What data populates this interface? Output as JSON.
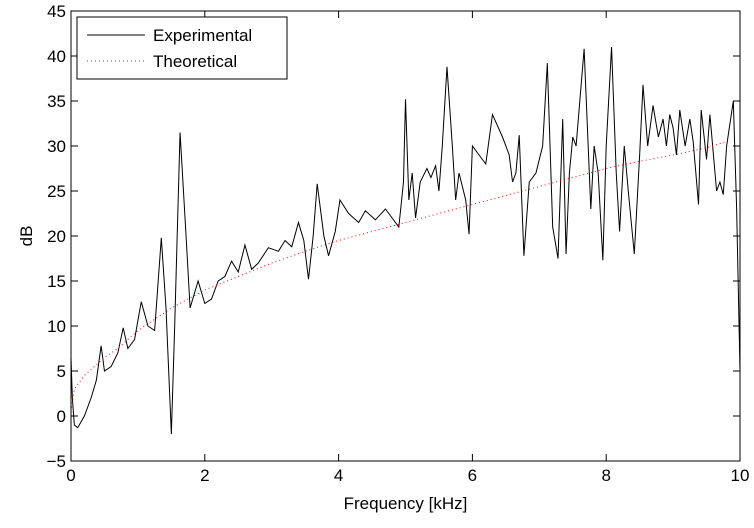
{
  "chart_data": {
    "type": "line",
    "xlabel": "Frequency [kHz]",
    "ylabel": "dB",
    "xlim": [
      0,
      10
    ],
    "ylim": [
      -5,
      45
    ],
    "xticks": [
      0,
      2,
      4,
      6,
      8,
      10
    ],
    "yticks": [
      {
        "value": -5,
        "label": "−5"
      },
      0,
      5,
      10,
      15,
      20,
      25,
      30,
      35,
      40,
      45
    ],
    "legend": "upper left",
    "series": [
      {
        "name": "Experimental",
        "color": "#000000",
        "style": "solid",
        "x": [
          0,
          0.02,
          0.05,
          0.1,
          0.2,
          0.3,
          0.38,
          0.45,
          0.5,
          0.6,
          0.7,
          0.78,
          0.85,
          0.95,
          1.05,
          1.15,
          1.25,
          1.35,
          1.42,
          1.5,
          1.55,
          1.63,
          1.72,
          1.78,
          1.9,
          2.0,
          2.1,
          2.2,
          2.3,
          2.4,
          2.5,
          2.6,
          2.7,
          2.8,
          2.95,
          3.1,
          3.2,
          3.3,
          3.4,
          3.48,
          3.55,
          3.62,
          3.68,
          3.78,
          3.85,
          3.95,
          4.02,
          4.15,
          4.3,
          4.4,
          4.55,
          4.7,
          4.8,
          4.9,
          4.97,
          5.0,
          5.05,
          5.1,
          5.15,
          5.22,
          5.32,
          5.38,
          5.45,
          5.5,
          5.55,
          5.62,
          5.7,
          5.75,
          5.8,
          5.9,
          5.95,
          6.0,
          6.1,
          6.2,
          6.3,
          6.45,
          6.55,
          6.6,
          6.65,
          6.7,
          6.77,
          6.85,
          6.95,
          7.05,
          7.12,
          7.2,
          7.28,
          7.35,
          7.4,
          7.45,
          7.5,
          7.55,
          7.67,
          7.77,
          7.82,
          7.88,
          7.95,
          8.0,
          8.08,
          8.15,
          8.2,
          8.27,
          8.33,
          8.42,
          8.5,
          8.55,
          8.62,
          8.7,
          8.78,
          8.85,
          8.9,
          8.95,
          9.0,
          9.05,
          9.1,
          9.18,
          9.25,
          9.3,
          9.38,
          9.42,
          9.5,
          9.55,
          9.65,
          9.7,
          9.75,
          9.8,
          9.9,
          9.95,
          10
        ],
        "values": [
          6.5,
          2,
          -1,
          -1.3,
          0,
          2,
          4,
          7.8,
          5,
          5.5,
          7,
          9.8,
          7.5,
          8.5,
          12.7,
          10,
          9.5,
          19.8,
          12,
          -2,
          10,
          31.5,
          20,
          12,
          15,
          12.5,
          13,
          15,
          15.5,
          17.2,
          16,
          19,
          16.3,
          17,
          18.7,
          18.3,
          19.5,
          18.8,
          21.5,
          19.5,
          15.2,
          20,
          25.8,
          20,
          17.8,
          20.5,
          24,
          22.5,
          21.5,
          22.8,
          21.8,
          23,
          22,
          21,
          26,
          35.2,
          24,
          27,
          22,
          26,
          27.5,
          26.5,
          27.8,
          25,
          30,
          38.8,
          30,
          24,
          27,
          24,
          20.2,
          30,
          29,
          28,
          33.5,
          31,
          29,
          26,
          27,
          31.2,
          17.8,
          26,
          27,
          30,
          39.2,
          21,
          17.5,
          33,
          18,
          27,
          31,
          30,
          40.8,
          23,
          30,
          27,
          17.3,
          30,
          41,
          27,
          20.5,
          30,
          25,
          18,
          29,
          36.8,
          30,
          34.5,
          31,
          33,
          30,
          33.5,
          32,
          29,
          34,
          30,
          33,
          30.5,
          23.5,
          34,
          28.5,
          33.5,
          25,
          26,
          24.6,
          30,
          35,
          23,
          5
        ]
      },
      {
        "name": "Theoretical",
        "color": "#ff0000",
        "style": "dotted",
        "x": [
          0,
          0.05,
          0.2,
          0.5,
          0.7,
          1,
          1.5,
          2,
          2.5,
          3,
          3.5,
          4,
          4.5,
          5,
          5.5,
          6,
          6.5,
          7,
          7.5,
          8,
          8.5,
          9,
          9.5,
          9.8
        ],
        "values": [
          0.5,
          3,
          4.5,
          6.5,
          7.5,
          9.5,
          12,
          14,
          15.5,
          17,
          18.3,
          19.5,
          20.5,
          21.5,
          22.5,
          23.5,
          24.5,
          25.5,
          26.5,
          27.5,
          28.3,
          29,
          29.8,
          30.5
        ]
      }
    ]
  }
}
